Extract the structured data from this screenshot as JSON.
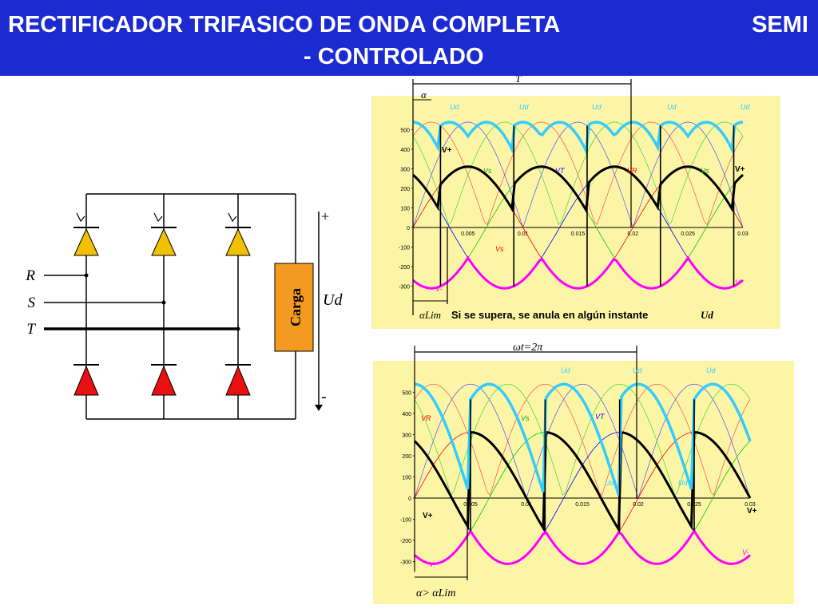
{
  "header": {
    "line1_left": "RECTIFICADOR TRIFASICO DE ONDA COMPLETA",
    "line1_right": "SEMI",
    "line2": "- CONTROLADO"
  },
  "circuit": {
    "phases": [
      "R",
      "S",
      "T"
    ],
    "load_label": "Carga",
    "output_label": "Ud",
    "plus": "+",
    "minus": "-",
    "thyristor_color": "#f2c000",
    "diode_color": "#e81010"
  },
  "plot_top": {
    "y_ticks": [
      "500",
      "400",
      "300",
      "200",
      "100",
      "0",
      "-100",
      "-200",
      "-300"
    ],
    "x_ticks": [
      "0.005",
      "0.01",
      "0.015",
      "0.02",
      "0.025",
      "0.03"
    ],
    "period_label": "T",
    "alpha_label": "α",
    "ud_labels": [
      "Ud",
      "Ud",
      "Ud",
      "Ud",
      "Ud"
    ],
    "vplus_left": "V+",
    "vplus_right": "V+",
    "vminus": "V-",
    "vminus_right": "V-",
    "vs_label": "Vs",
    "vr_label": "VR",
    "vt_label": "VT",
    "vs_mid": "Vs",
    "vr_mid": "Vs",
    "alpha_lim": "αLim",
    "note": "Si se supera, se anula en algún instante",
    "note_ud": "Ud"
  },
  "plot_bottom": {
    "y_ticks": [
      "500",
      "400",
      "300",
      "200",
      "100",
      "0",
      "-100",
      "-200",
      "-300"
    ],
    "x_ticks": [
      "0.005",
      "0.01",
      "0.015",
      "0.02",
      "0.025",
      "0.03"
    ],
    "period_label": "ωt=2π",
    "ud_labels": [
      "Ud",
      "Ud",
      "Ud",
      "Ud",
      "Ud"
    ],
    "vr_label": "VR",
    "vs_label": "Vs",
    "vt_label": "VT",
    "vplus_left": "V+",
    "vplus_right": "V+",
    "vminus_left": "V-",
    "vminus_right": "V-",
    "alpha_cond": "α> αLim"
  },
  "chart_data": {
    "type": "line",
    "x_range": [
      0,
      0.03
    ],
    "y_range": [
      -350,
      600
    ],
    "series": [
      {
        "name": "VR",
        "amplitude": 311,
        "phase_deg": 0,
        "color": "#ff0000"
      },
      {
        "name": "VS",
        "amplitude": 311,
        "phase_deg": -120,
        "color": "#00cc00"
      },
      {
        "name": "VT",
        "amplitude": 311,
        "phase_deg": 120,
        "color": "#0000ff"
      },
      {
        "name": "V+",
        "color": "#000000"
      },
      {
        "name": "V-",
        "color": "#ff00ff"
      },
      {
        "name": "Ud",
        "color": "#33ccff"
      }
    ],
    "frequency_hz": 50,
    "line_to_line_amplitude": 539
  }
}
